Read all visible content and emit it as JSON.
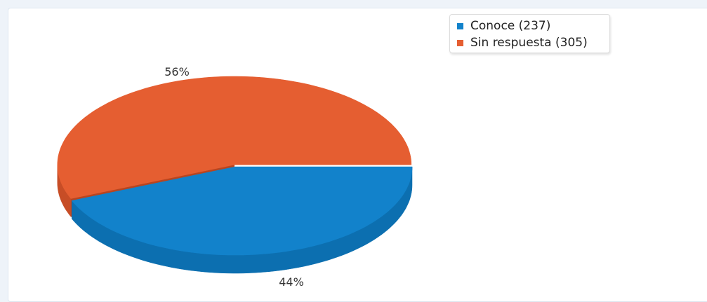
{
  "chart_data": {
    "type": "pie",
    "style": "3d",
    "slices": [
      {
        "label": "Conoce",
        "value": 237,
        "percent_label": "44%",
        "legend_text": "Conoce (237)",
        "color": "#1282cb",
        "side_color": "#0c6fb0",
        "edge_color": "#0a63a0"
      },
      {
        "label": "Sin respuesta",
        "value": 305,
        "percent_label": "56%",
        "legend_text": "Sin respuesta (305)",
        "color": "#e55e31",
        "side_color": "#c74d26",
        "edge_color": "#b84520"
      }
    ],
    "legend_position": "top-right",
    "exploded_slice": "Sin respuesta"
  }
}
